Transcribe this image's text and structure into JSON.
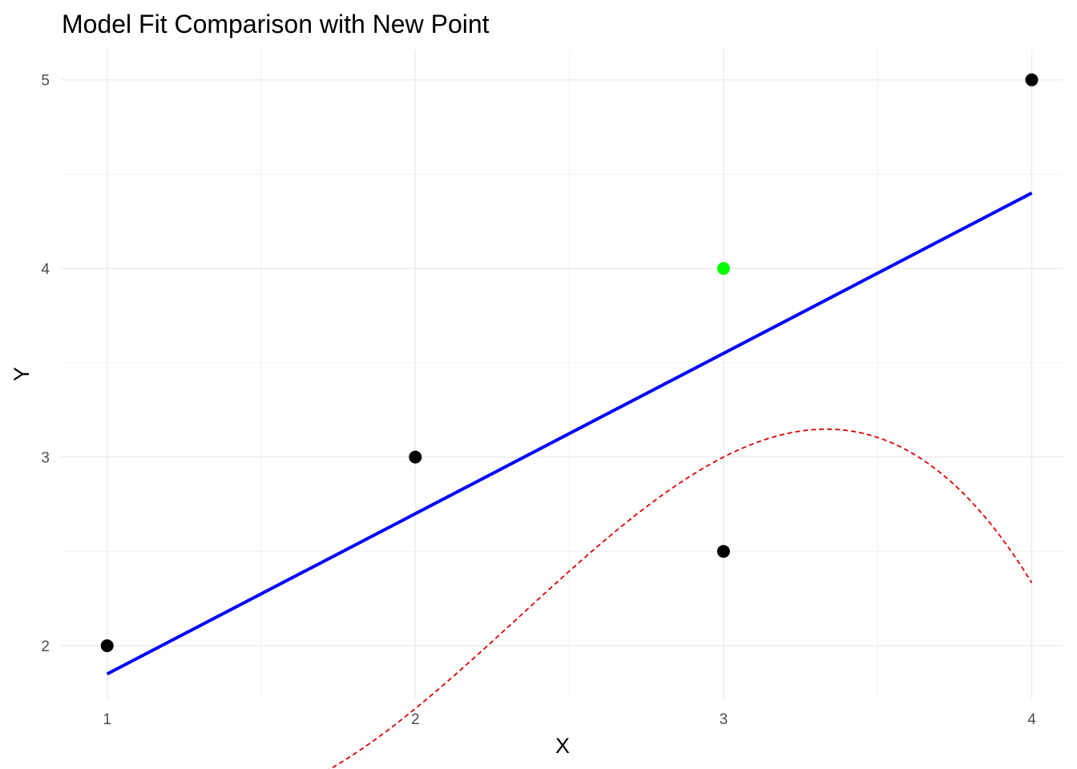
{
  "chart_data": {
    "type": "scatter",
    "title": "Model Fit Comparison with New Point",
    "xlabel": "X",
    "ylabel": "Y",
    "xlim": [
      0.85,
      4.1
    ],
    "ylim": [
      1.72,
      5.16
    ],
    "x_ticks": [
      1,
      2,
      3,
      4
    ],
    "y_ticks": [
      2,
      3,
      4,
      5
    ],
    "x_minor": [
      1.5,
      2.5,
      3.5
    ],
    "y_minor": [
      2.5,
      3.5,
      4.5
    ],
    "grid": true,
    "legend": "none",
    "series": [
      {
        "type": "scatter",
        "color": "#000000",
        "points": [
          {
            "x": 1,
            "y": 2
          },
          {
            "x": 2,
            "y": 3
          },
          {
            "x": 3,
            "y": 2.5
          },
          {
            "x": 4,
            "y": 5
          }
        ]
      },
      {
        "type": "scatter",
        "color": "#00ff00",
        "points": [
          {
            "x": 3,
            "y": 4
          }
        ]
      },
      {
        "type": "line",
        "style": "solid",
        "color": "#0000ff",
        "points": [
          {
            "x": 1,
            "y": 1.85
          },
          {
            "x": 4,
            "y": 4.4
          }
        ]
      },
      {
        "type": "line",
        "style": "dashed",
        "color": "#dd0000",
        "function": "cubic-interpolation",
        "coefficients": [
          5,
          -6.6667,
          3.5,
          -0.5
        ]
      }
    ]
  }
}
